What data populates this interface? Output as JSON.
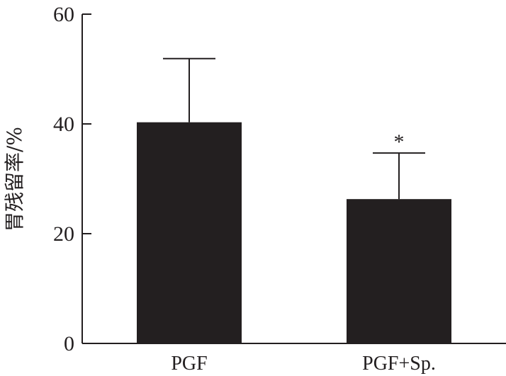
{
  "chart_data": {
    "type": "bar",
    "ylabel": "胃残留率/%",
    "xlabel": "",
    "ylim": [
      0,
      60
    ],
    "yticks": [
      0,
      20,
      40,
      60
    ],
    "categories": [
      "PGF",
      "PGF+Sp."
    ],
    "values": [
      40.3,
      26.3
    ],
    "error_upper": [
      51.9,
      34.7
    ],
    "annotations": [
      "",
      "*"
    ],
    "grid": false,
    "colors": {
      "bar": "#231f20",
      "axis": "#231f20"
    }
  }
}
